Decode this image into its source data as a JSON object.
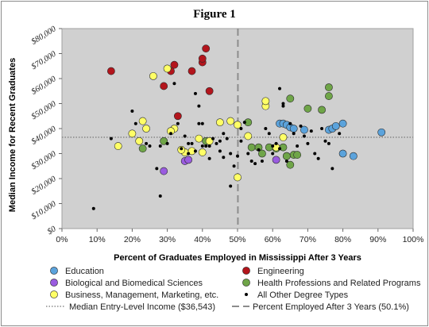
{
  "chart_data": {
    "type": "scatter",
    "title": "Figure 1",
    "xlabel": "Percent of Graduates Employed in Mississippi After 3 Years",
    "ylabel": "Median Income for Recent Graduates",
    "xlim": [
      0,
      100
    ],
    "ylim": [
      0,
      80000
    ],
    "x_ticks": [
      "0%",
      "10%",
      "20%",
      "30%",
      "40%",
      "50%",
      "60%",
      "70%",
      "80%",
      "90%",
      "100%"
    ],
    "y_ticks": [
      "$0",
      "$10,000",
      "$20,000",
      "$30,000",
      "$40,000",
      "$50,000",
      "$60,000",
      "$70,000",
      "$80,000"
    ],
    "plot_background": "#d0d0d0",
    "grid": false,
    "legend_position": "bottom",
    "reference_lines": [
      {
        "name": "Median Entry-Level Income ($36,543)",
        "orientation": "horizontal",
        "value": 36543,
        "style": "dotted",
        "color": "#8c8c8c"
      },
      {
        "name": "Percent Employed After 3 Years (50.1%)",
        "orientation": "vertical",
        "value": 50.1,
        "style": "dashed",
        "color": "#8c8c8c"
      }
    ],
    "series": [
      {
        "name": "Education",
        "color": "#5ba3dc",
        "marker": "circle",
        "points": [
          [
            62,
            42000
          ],
          [
            63,
            42000
          ],
          [
            64,
            41500
          ],
          [
            65,
            40500
          ],
          [
            66,
            40000
          ],
          [
            69,
            39500
          ],
          [
            76,
            39500
          ],
          [
            77,
            40000
          ],
          [
            78,
            41000
          ],
          [
            80,
            42000
          ],
          [
            91,
            38500
          ],
          [
            80,
            30000
          ],
          [
            83,
            29000
          ]
        ]
      },
      {
        "name": "Engineering",
        "color": "#b3151c",
        "marker": "circle",
        "points": [
          [
            14,
            63000
          ],
          [
            29,
            57000
          ],
          [
            31,
            63000
          ],
          [
            32,
            65500
          ],
          [
            33,
            45000
          ],
          [
            37,
            63000
          ],
          [
            40,
            66500
          ],
          [
            40,
            68000
          ],
          [
            41,
            72000
          ],
          [
            42,
            55000
          ]
        ]
      },
      {
        "name": "Biological and Biomedical Sciences",
        "color": "#9a5ce0",
        "marker": "circle",
        "points": [
          [
            29,
            23000
          ],
          [
            35,
            27000
          ],
          [
            36,
            27500
          ],
          [
            61,
            27500
          ]
        ]
      },
      {
        "name": "Health Professions and Related Programs",
        "color": "#6fa548",
        "marker": "circle",
        "points": [
          [
            23,
            32000
          ],
          [
            29,
            35000
          ],
          [
            41,
            35000
          ],
          [
            53,
            42500
          ],
          [
            54,
            32500
          ],
          [
            56,
            32500
          ],
          [
            57,
            30000
          ],
          [
            59,
            32500
          ],
          [
            61,
            32000
          ],
          [
            63,
            32500
          ],
          [
            64,
            29000
          ],
          [
            64,
            29000
          ],
          [
            65,
            52000
          ],
          [
            65,
            25500
          ],
          [
            66,
            29500
          ],
          [
            67,
            29500
          ],
          [
            70,
            48000
          ],
          [
            74,
            47500
          ],
          [
            76,
            56500
          ],
          [
            76,
            53000
          ]
        ]
      },
      {
        "name": "Business, Management, Marketing, etc.",
        "color": "#ffff66",
        "marker": "circle",
        "points": [
          [
            16,
            33000
          ],
          [
            20,
            38000
          ],
          [
            22,
            35000
          ],
          [
            23,
            43000
          ],
          [
            24,
            40000
          ],
          [
            26,
            61000
          ],
          [
            30,
            64000
          ],
          [
            32,
            40000
          ],
          [
            35,
            30500
          ],
          [
            37,
            31000
          ],
          [
            39,
            36000
          ],
          [
            40,
            30500
          ],
          [
            42,
            35000
          ],
          [
            45,
            42500
          ],
          [
            48,
            43000
          ],
          [
            50,
            41500
          ],
          [
            53,
            37000
          ],
          [
            58,
            49000
          ],
          [
            58,
            51000
          ],
          [
            61,
            32500
          ],
          [
            63,
            36500
          ],
          [
            31,
            39000
          ],
          [
            34,
            31500
          ],
          [
            50,
            20500
          ]
        ]
      },
      {
        "name": "All Other Degree Types",
        "color": "#000000",
        "marker": "dot",
        "points": [
          [
            9,
            8000
          ],
          [
            14,
            36000
          ],
          [
            20,
            47000
          ],
          [
            21,
            42000
          ],
          [
            24,
            34000
          ],
          [
            25,
            33000
          ],
          [
            27,
            24000
          ],
          [
            28,
            13000
          ],
          [
            28,
            33000
          ],
          [
            30,
            34000
          ],
          [
            31,
            38000
          ],
          [
            32,
            58000
          ],
          [
            33,
            42000
          ],
          [
            34,
            32000
          ],
          [
            35,
            37000
          ],
          [
            36,
            30000
          ],
          [
            36,
            34000
          ],
          [
            37,
            34000
          ],
          [
            38,
            54000
          ],
          [
            38,
            31000
          ],
          [
            39,
            42000
          ],
          [
            39,
            49000
          ],
          [
            40,
            33000
          ],
          [
            40,
            42000
          ],
          [
            41,
            33000
          ],
          [
            42,
            33000
          ],
          [
            42,
            28000
          ],
          [
            43,
            36000
          ],
          [
            44,
            34000
          ],
          [
            45,
            31000
          ],
          [
            45,
            35000
          ],
          [
            46,
            38000
          ],
          [
            46,
            28500
          ],
          [
            47,
            36000
          ],
          [
            48,
            30000
          ],
          [
            48,
            17000
          ],
          [
            49,
            25000
          ],
          [
            50,
            29000
          ],
          [
            51,
            40000
          ],
          [
            51,
            35000
          ],
          [
            52,
            42500
          ],
          [
            53,
            30000
          ],
          [
            54,
            27000
          ],
          [
            55,
            26000
          ],
          [
            56,
            31500
          ],
          [
            57,
            27000
          ],
          [
            58,
            40000
          ],
          [
            59,
            38000
          ],
          [
            60,
            30000
          ],
          [
            60,
            33000
          ],
          [
            61,
            34000
          ],
          [
            62,
            32000
          ],
          [
            63,
            49000
          ],
          [
            62,
            56000
          ],
          [
            63,
            50000
          ],
          [
            64,
            27000
          ],
          [
            65,
            42000
          ],
          [
            66,
            38000
          ],
          [
            67,
            33000
          ],
          [
            68,
            41000
          ],
          [
            69,
            37000
          ],
          [
            70,
            34000
          ],
          [
            71,
            39000
          ],
          [
            72,
            30000
          ],
          [
            73,
            28000
          ],
          [
            74,
            40000
          ],
          [
            75,
            35000
          ],
          [
            76,
            34000
          ],
          [
            77,
            24000
          ],
          [
            79,
            38000
          ]
        ]
      }
    ]
  }
}
